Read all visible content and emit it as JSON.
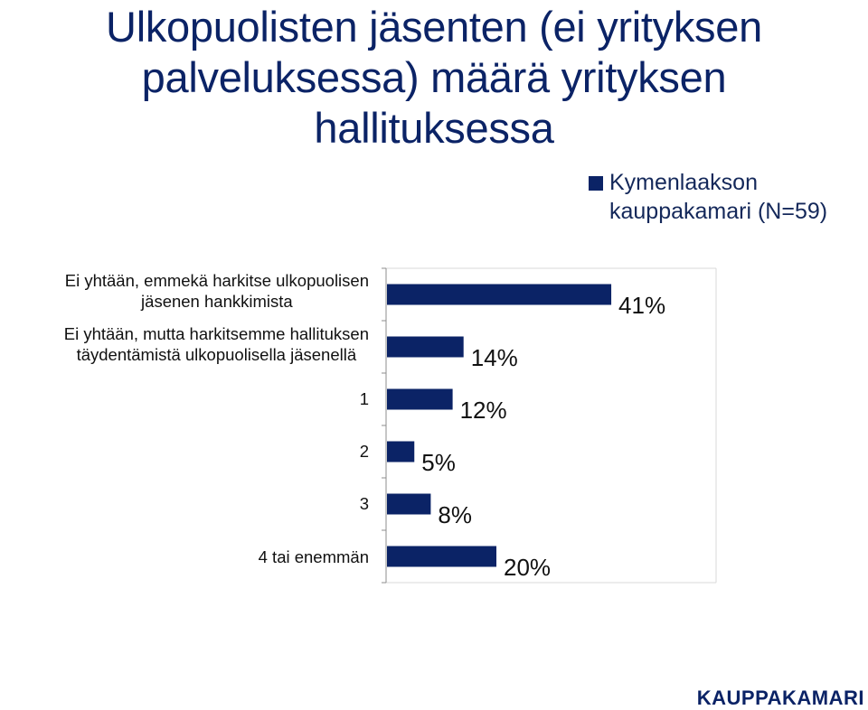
{
  "chart_data": {
    "type": "bar",
    "orientation": "horizontal",
    "title_lines": [
      "Ulkopuolisten jäsenten (ei yrityksen",
      "palveluksessa) määrä yrityksen",
      "hallituksessa"
    ],
    "legend": {
      "label_lines": [
        "Kymenlaakson",
        "kauppakamari (N=59)"
      ],
      "position": "top-right",
      "color": "#0b2366"
    },
    "categories": [
      {
        "lines": [
          "Ei yhtään, emmekä harkitse ulkopuolisen",
          "jäsenen hankkimista"
        ]
      },
      {
        "lines": [
          "Ei yhtään, mutta harkitsemme hallituksen",
          "täydentämistä ulkopuolisella jäsenellä"
        ]
      },
      {
        "lines": [
          "1"
        ]
      },
      {
        "lines": [
          "2"
        ]
      },
      {
        "lines": [
          "3"
        ]
      },
      {
        "lines": [
          "4 tai enemmän"
        ]
      }
    ],
    "series": [
      {
        "values": [
          41,
          14,
          12,
          5,
          8,
          20
        ],
        "labels": [
          "41%",
          "14%",
          "12%",
          "5%",
          "8%",
          "20%"
        ]
      }
    ],
    "xlim": [
      0,
      65
    ],
    "grid": false,
    "bar_color": "#0b2366"
  },
  "brand": {
    "logo_text": "KAUPPAKAMARI"
  }
}
